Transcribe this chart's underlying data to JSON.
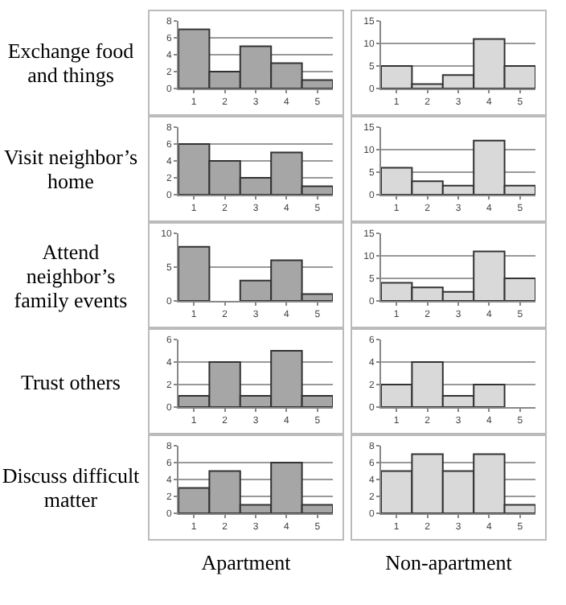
{
  "chart_data": [
    {
      "type": "bar",
      "ylabel": "Exchange food and things",
      "categories": [
        "1",
        "2",
        "3",
        "4",
        "5"
      ],
      "values": [
        7,
        2,
        5,
        3,
        1
      ],
      "color": "#a6a6a6",
      "ylim": [
        0,
        8
      ],
      "yticks": [
        0,
        2,
        4,
        6,
        8
      ],
      "grid": "y"
    },
    {
      "type": "bar",
      "categories": [
        "1",
        "2",
        "3",
        "4",
        "5"
      ],
      "values": [
        5,
        1,
        3,
        11,
        5
      ],
      "color": "#d9d9d9",
      "ylim": [
        0,
        15
      ],
      "yticks": [
        0,
        5,
        10,
        15
      ],
      "grid": "y"
    },
    {
      "type": "bar",
      "ylabel": "Visit neighbor’s home",
      "categories": [
        "1",
        "2",
        "3",
        "4",
        "5"
      ],
      "values": [
        6,
        4,
        2,
        5,
        1
      ],
      "color": "#a6a6a6",
      "ylim": [
        0,
        8
      ],
      "yticks": [
        0,
        2,
        4,
        6,
        8
      ],
      "grid": "y"
    },
    {
      "type": "bar",
      "categories": [
        "1",
        "2",
        "3",
        "4",
        "5"
      ],
      "values": [
        6,
        3,
        2,
        12,
        2
      ],
      "color": "#d9d9d9",
      "ylim": [
        0,
        15
      ],
      "yticks": [
        0,
        5,
        10,
        15
      ],
      "grid": "y"
    },
    {
      "type": "bar",
      "ylabel": "Attend neighbor’s family events",
      "categories": [
        "1",
        "2",
        "3",
        "4",
        "5"
      ],
      "values": [
        8,
        0,
        3,
        6,
        1
      ],
      "color": "#a6a6a6",
      "ylim": [
        0,
        10
      ],
      "yticks": [
        0,
        5,
        10
      ],
      "grid": "y"
    },
    {
      "type": "bar",
      "categories": [
        "1",
        "2",
        "3",
        "4",
        "5"
      ],
      "values": [
        4,
        3,
        2,
        11,
        5
      ],
      "color": "#d9d9d9",
      "ylim": [
        0,
        15
      ],
      "yticks": [
        0,
        5,
        10,
        15
      ],
      "grid": "y"
    },
    {
      "type": "bar",
      "ylabel": "Trust others",
      "categories": [
        "1",
        "2",
        "3",
        "4",
        "5"
      ],
      "values": [
        1,
        4,
        1,
        5,
        1
      ],
      "color": "#a6a6a6",
      "ylim": [
        0,
        6
      ],
      "yticks": [
        0,
        2,
        4,
        6
      ],
      "grid": "y"
    },
    {
      "type": "bar",
      "categories": [
        "1",
        "2",
        "3",
        "4",
        "5"
      ],
      "values": [
        2,
        4,
        1,
        2,
        0
      ],
      "color": "#d9d9d9",
      "ylim": [
        0,
        6
      ],
      "yticks": [
        0,
        2,
        4,
        6
      ],
      "grid": "y"
    },
    {
      "type": "bar",
      "ylabel": "Discuss difficult matter",
      "xlabel": "Apartment",
      "categories": [
        "1",
        "2",
        "3",
        "4",
        "5"
      ],
      "values": [
        3,
        5,
        1,
        6,
        1
      ],
      "color": "#a6a6a6",
      "ylim": [
        0,
        8
      ],
      "yticks": [
        0,
        2,
        4,
        6,
        8
      ],
      "grid": "y"
    },
    {
      "type": "bar",
      "xlabel": "Non-apartment",
      "categories": [
        "1",
        "2",
        "3",
        "4",
        "5"
      ],
      "values": [
        5,
        7,
        5,
        7,
        1
      ],
      "color": "#d9d9d9",
      "ylim": [
        0,
        8
      ],
      "yticks": [
        0,
        2,
        4,
        6,
        8
      ],
      "grid": "y"
    }
  ]
}
